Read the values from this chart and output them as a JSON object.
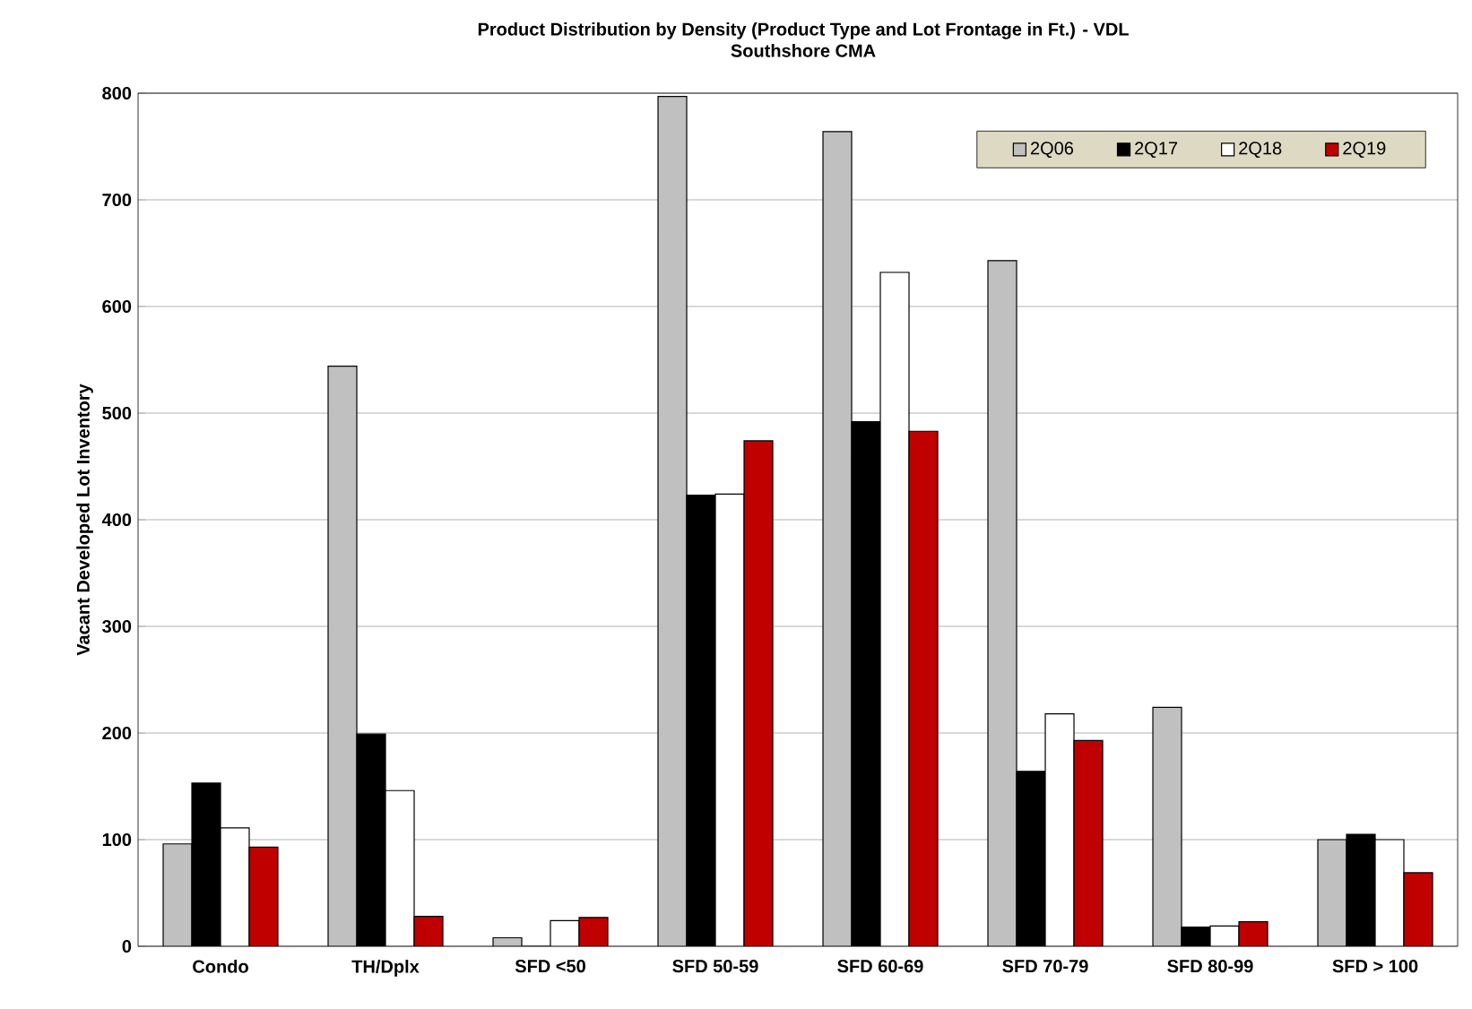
{
  "chart_data": {
    "type": "bar",
    "title": "Product Distribution by Density (Product Type and Lot Frontage in Ft.) - VDL",
    "subtitle": "Southshore CMA",
    "ylabel": "Vacant Developed Lot Inventory",
    "categories": [
      "Condo",
      "TH/Dplx",
      "SFD <50",
      "SFD 50-59",
      "SFD 60-69",
      "SFD 70-79",
      "SFD 80-99",
      "SFD > 100"
    ],
    "series": [
      {
        "name": "2Q06",
        "color": "#c0c0c0",
        "values": [
          96,
          544,
          8,
          797,
          764,
          643,
          224,
          100
        ]
      },
      {
        "name": "2Q17",
        "color": "#000000",
        "values": [
          153,
          199,
          0,
          423,
          492,
          164,
          18,
          105
        ]
      },
      {
        "name": "2Q18",
        "color": "#ffffff",
        "values": [
          111,
          146,
          24,
          424,
          632,
          218,
          19,
          100
        ]
      },
      {
        "name": "2Q19",
        "color": "#c00000",
        "values": [
          93,
          28,
          27,
          474,
          483,
          193,
          23,
          69
        ]
      }
    ],
    "ylim": [
      0,
      800
    ],
    "yticks": [
      0,
      100,
      200,
      300,
      400,
      500,
      600,
      700,
      800
    ],
    "grid": "y",
    "legend": "top right"
  }
}
